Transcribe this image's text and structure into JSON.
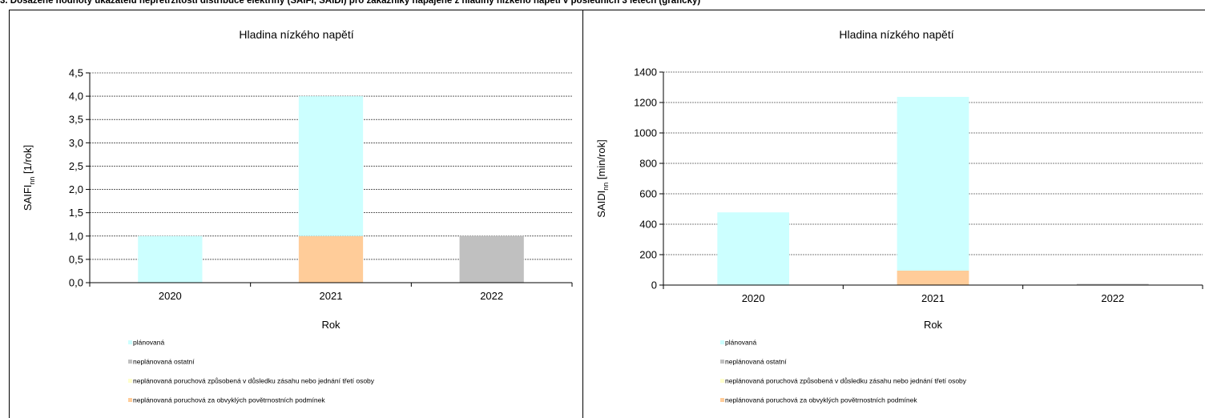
{
  "page_heading": "3. Dosažené hodnoty ukazatelů nepřetržitosti distribuce elektřiny (SAIFI, SAIDI) pro zákazníky napájené z hladiny nízkého napětí v posledních 3 letech (graficky)",
  "legend": [
    {
      "label": "plánovaná",
      "color": "#ccffff"
    },
    {
      "label": "neplánovaná ostatní",
      "color": "#c0c0c0"
    },
    {
      "label": "neplánovaná poruchová způsobená v důsledku zásahu nebo jednání třetí osoby",
      "color": "#ffffcc"
    },
    {
      "label": "neplánovaná poruchová za obvyklých povětrnostních podmínek",
      "color": "#ffcc99"
    }
  ],
  "chart_data": [
    {
      "type": "bar",
      "stacked": true,
      "title": "Hladina nízkého napětí",
      "xlabel": "Rok",
      "ylabel_main": "SAIFI",
      "ylabel_sub": "nn",
      "ylabel_unit": " [1/rok]",
      "categories": [
        "2020",
        "2021",
        "2022"
      ],
      "ylim": [
        0,
        4.5
      ],
      "yticks": [
        "0,0",
        "0,5",
        "1,0",
        "1,5",
        "2,0",
        "2,5",
        "3,0",
        "3,5",
        "4,0",
        "4,5"
      ],
      "grid": true,
      "legend_position": "bottom",
      "series": [
        {
          "name": "neplánovaná poruchová za obvyklých povětrnostních podmínek",
          "color": "#ffcc99",
          "values": [
            0,
            1.0,
            0
          ]
        },
        {
          "name": "neplánovaná poruchová způsobená v důsledku zásahu nebo jednání třetí osoby",
          "color": "#ffffcc",
          "values": [
            0,
            0,
            0
          ]
        },
        {
          "name": "neplánovaná ostatní",
          "color": "#c0c0c0",
          "values": [
            0,
            0,
            1.0
          ]
        },
        {
          "name": "plánovaná",
          "color": "#ccffff",
          "values": [
            1.0,
            3.0,
            0
          ]
        }
      ]
    },
    {
      "type": "bar",
      "stacked": true,
      "title": "Hladina nízkého napětí",
      "xlabel": "Rok",
      "ylabel_main": "SAIDI",
      "ylabel_sub": "nn",
      "ylabel_unit": " [min/rok]",
      "categories": [
        "2020",
        "2021",
        "2022"
      ],
      "ylim": [
        0,
        1400
      ],
      "yticks": [
        "0",
        "200",
        "400",
        "600",
        "800",
        "1000",
        "1200",
        "1400"
      ],
      "grid": true,
      "legend_position": "bottom",
      "series": [
        {
          "name": "neplánovaná poruchová za obvyklých povětrnostních podmínek",
          "color": "#ffcc99",
          "values": [
            0,
            95,
            0
          ]
        },
        {
          "name": "neplánovaná poruchová způsobená v důsledku zásahu nebo jednání třetí osoby",
          "color": "#ffffcc",
          "values": [
            0,
            0,
            0
          ]
        },
        {
          "name": "neplánovaná ostatní",
          "color": "#c0c0c0",
          "values": [
            0,
            0,
            8
          ]
        },
        {
          "name": "plánovaná",
          "color": "#ccffff",
          "values": [
            478,
            1142,
            0
          ]
        }
      ]
    }
  ]
}
